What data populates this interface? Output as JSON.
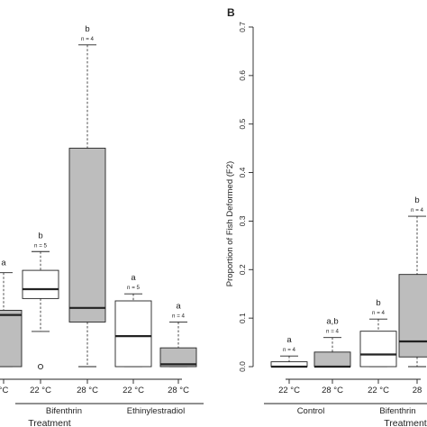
{
  "colors": {
    "stroke": "#222222",
    "gray_box": "#bdbdbd",
    "white_box": "#ffffff"
  },
  "chart_data": [
    {
      "type": "box",
      "panel_label": "",
      "xlabel": "Treatment",
      "ylabel": "",
      "ylim": [
        0,
        0.7
      ],
      "group_labels": [
        {
          "label": "Bifenthrin",
          "members": [
            1,
            2
          ]
        },
        {
          "label": "Ethinylestradiol",
          "members": [
            3,
            4
          ]
        }
      ],
      "boxes": [
        {
          "tick": "°C",
          "fill": "gray",
          "n_label": "",
          "letter": "a",
          "min": 0.0,
          "q1": 0.0,
          "median": 0.11,
          "q3": 0.12,
          "max": 0.2,
          "outliers": []
        },
        {
          "tick": "22 °C",
          "fill": "white",
          "n_label": "n = 5",
          "letter": "b",
          "min": 0.075,
          "q1": 0.145,
          "median": 0.165,
          "q3": 0.205,
          "max": 0.245,
          "outliers": [
            0.0
          ]
        },
        {
          "tick": "28 °C",
          "fill": "gray",
          "n_label": "n = 4",
          "letter": "b",
          "min": 0.0,
          "q1": 0.095,
          "median": 0.125,
          "q3": 0.465,
          "max": 0.685,
          "outliers": []
        },
        {
          "tick": "22 °C",
          "fill": "white",
          "n_label": "n = 5",
          "letter": "a",
          "min": 0.0,
          "q1": 0.0,
          "median": 0.065,
          "q3": 0.14,
          "max": 0.155,
          "outliers": []
        },
        {
          "tick": "28 °C",
          "fill": "gray",
          "n_label": "n = 4",
          "letter": "a",
          "min": 0.0,
          "q1": 0.0,
          "median": 0.005,
          "q3": 0.04,
          "max": 0.095,
          "outliers": []
        }
      ]
    },
    {
      "type": "box",
      "panel_label": "B",
      "xlabel": "Treatment",
      "ylabel": "Proportion of Fish Deformed (F2)",
      "ylim": [
        0,
        0.7
      ],
      "yticks": [
        0.0,
        0.1,
        0.2,
        0.3,
        0.4,
        0.5,
        0.6,
        0.7
      ],
      "group_labels": [
        {
          "label": "Control",
          "members": [
            0,
            1
          ]
        },
        {
          "label": "Bifenthrin",
          "members": [
            2,
            3
          ]
        }
      ],
      "boxes": [
        {
          "tick": "22 °C",
          "fill": "white",
          "n_label": "n = 4",
          "letter": "a",
          "min": 0.0,
          "q1": 0.0,
          "median": 0.0,
          "q3": 0.01,
          "max": 0.022,
          "outliers": []
        },
        {
          "tick": "28 °C",
          "fill": "gray",
          "n_label": "n = 4",
          "letter": "a,b",
          "min": 0.0,
          "q1": 0.0,
          "median": 0.0,
          "q3": 0.03,
          "max": 0.06,
          "outliers": []
        },
        {
          "tick": "22 °C",
          "fill": "white",
          "n_label": "n = 4",
          "letter": "b",
          "min": 0.0,
          "q1": 0.0,
          "median": 0.025,
          "q3": 0.073,
          "max": 0.098,
          "outliers": []
        },
        {
          "tick": "28",
          "fill": "gray",
          "n_label": "n = 4",
          "letter": "b",
          "min": 0.0,
          "q1": 0.02,
          "median": 0.052,
          "q3": 0.19,
          "max": 0.31,
          "outliers": []
        }
      ]
    }
  ]
}
